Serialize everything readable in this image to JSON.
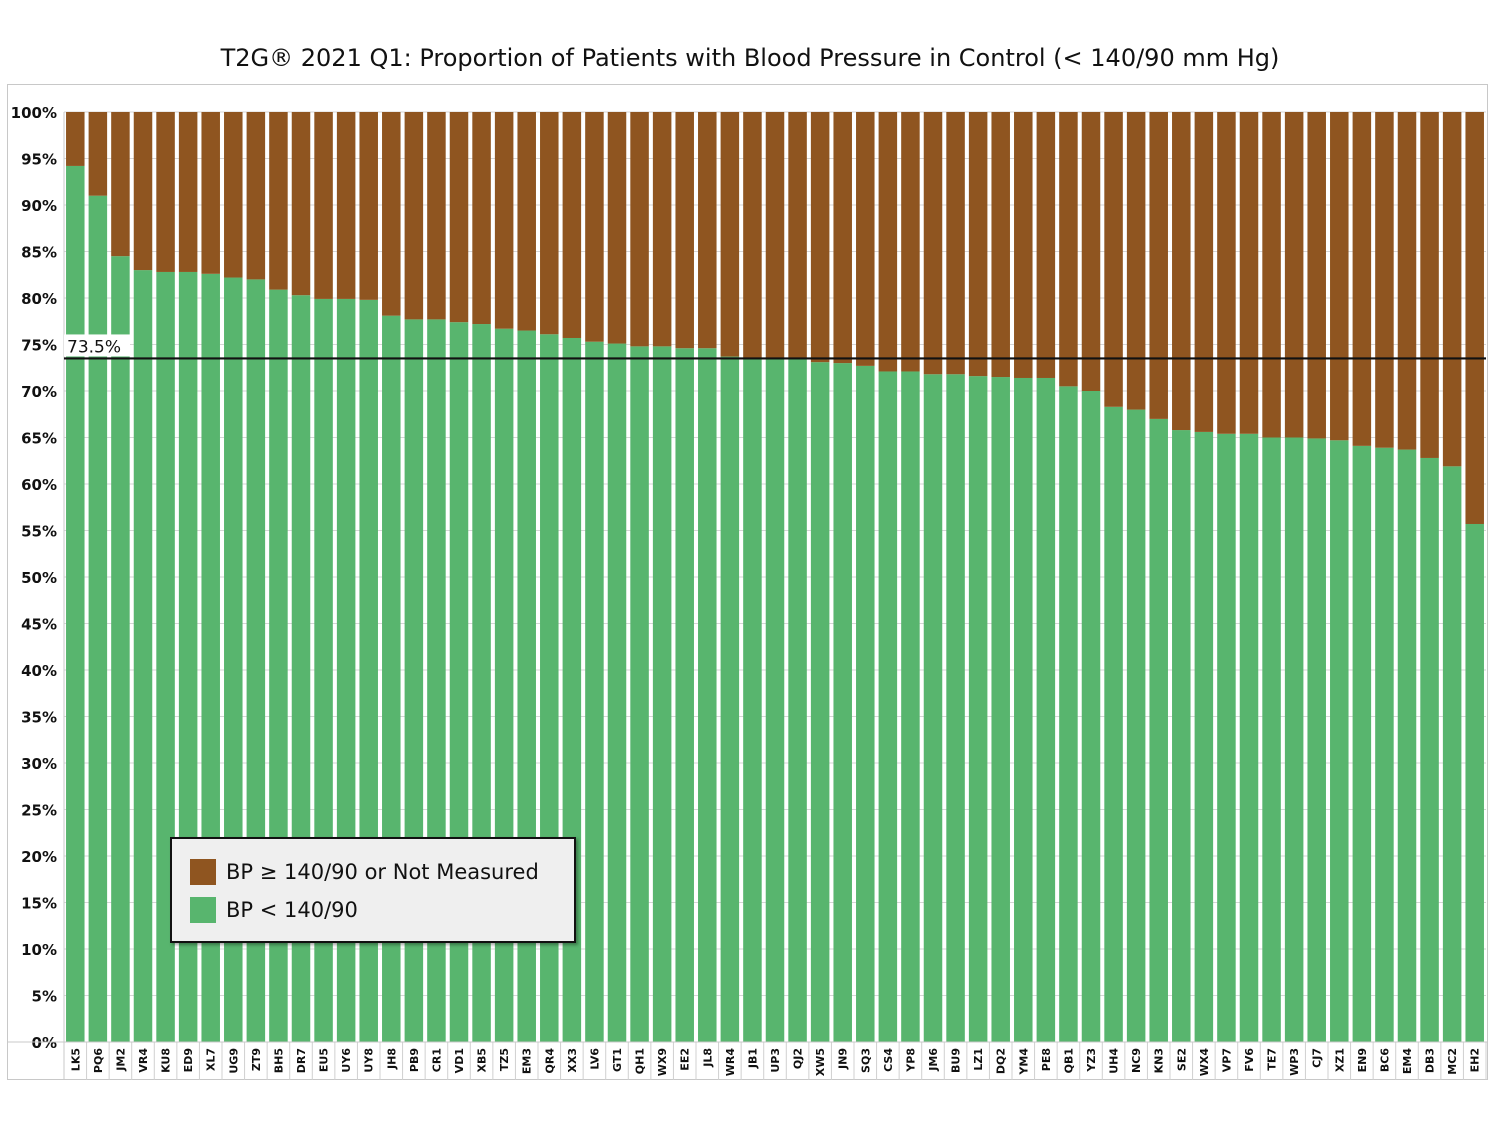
{
  "chart_data": {
    "type": "bar",
    "stacked": true,
    "title": "T2G® 2021 Q1: Proportion of Patients with Blood Pressure in Control (< 140/90 mm Hg)",
    "xlabel": "",
    "ylabel": "",
    "ylim": [
      0,
      100
    ],
    "yticks": [
      "0%",
      "5%",
      "10%",
      "15%",
      "20%",
      "25%",
      "30%",
      "35%",
      "40%",
      "45%",
      "50%",
      "55%",
      "60%",
      "65%",
      "70%",
      "75%",
      "80%",
      "85%",
      "90%",
      "95%",
      "100%"
    ],
    "grid": true,
    "legend_position": "bottom-left",
    "reference_line": {
      "value": 73.5,
      "label": "73.5%"
    },
    "categories": [
      "LK5",
      "PQ6",
      "JM2",
      "VR4",
      "KU8",
      "ED9",
      "XL7",
      "UG9",
      "ZT9",
      "BH5",
      "DR7",
      "EU5",
      "UY6",
      "UY8",
      "JH8",
      "PB9",
      "CR1",
      "VD1",
      "XB5",
      "TZ5",
      "EM3",
      "QR4",
      "XX3",
      "LV6",
      "GT1",
      "QH1",
      "WX9",
      "EE2",
      "JL8",
      "WR4",
      "JB1",
      "UP3",
      "QJ2",
      "XW5",
      "JN9",
      "SQ3",
      "CS4",
      "YP8",
      "JM6",
      "BU9",
      "LZ1",
      "DQ2",
      "YM4",
      "PE8",
      "QB1",
      "YZ3",
      "UH4",
      "NC9",
      "KN3",
      "SE2",
      "WX4",
      "VP7",
      "FV6",
      "TE7",
      "WP3",
      "CJ7",
      "XZ1",
      "EN9",
      "BC6",
      "EM4",
      "DB3",
      "MC2",
      "EH2"
    ],
    "series": [
      {
        "name": "BP < 140/90",
        "color": "#58b56e",
        "values": [
          94.2,
          91.0,
          84.5,
          83.0,
          82.8,
          82.8,
          82.6,
          82.2,
          82.0,
          80.9,
          80.3,
          79.9,
          79.9,
          79.8,
          78.1,
          77.7,
          77.7,
          77.4,
          77.2,
          76.7,
          76.5,
          76.1,
          75.7,
          75.3,
          75.1,
          74.8,
          74.8,
          74.6,
          74.6,
          73.7,
          73.5,
          73.4,
          73.4,
          73.1,
          73.0,
          72.7,
          72.1,
          72.1,
          71.8,
          71.8,
          71.6,
          71.5,
          71.4,
          71.4,
          70.5,
          70.0,
          68.3,
          68.0,
          67.0,
          65.8,
          65.6,
          65.4,
          65.4,
          65.0,
          65.0,
          64.9,
          64.7,
          64.1,
          63.9,
          63.7,
          62.8,
          61.9,
          55.7
        ]
      },
      {
        "name": "BP ≥ 140/90 or Not Measured",
        "color": "#8f5520",
        "values": [
          5.8,
          9.0,
          15.5,
          17.0,
          17.2,
          17.2,
          17.4,
          17.8,
          18.0,
          19.1,
          19.7,
          20.1,
          20.1,
          20.2,
          21.9,
          22.3,
          22.3,
          22.6,
          22.8,
          23.3,
          23.5,
          23.9,
          24.3,
          24.7,
          24.9,
          25.2,
          25.2,
          25.4,
          25.4,
          26.3,
          26.5,
          26.6,
          26.6,
          26.9,
          27.0,
          27.3,
          27.9,
          27.9,
          28.2,
          28.2,
          28.4,
          28.5,
          28.6,
          28.6,
          29.5,
          30.0,
          31.7,
          32.0,
          33.0,
          34.2,
          34.4,
          34.6,
          34.6,
          35.0,
          35.0,
          35.1,
          35.3,
          35.9,
          36.1,
          36.3,
          37.2,
          38.1,
          44.3
        ]
      }
    ]
  },
  "legend": {
    "items": [
      {
        "label": "BP ≥ 140/90 or Not Measured",
        "color": "#8f5520"
      },
      {
        "label": "BP < 140/90",
        "color": "#58b56e"
      }
    ]
  }
}
